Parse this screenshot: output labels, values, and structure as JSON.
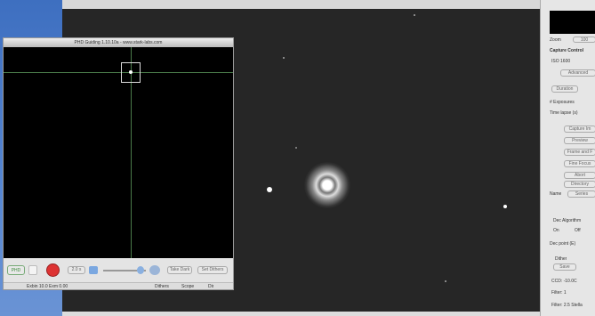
{
  "phd_window": {
    "title": "PHD Guiding 1.10.10a  -  www.stark-labs.com",
    "toolbar": {
      "button_1": "PHD",
      "exposure": "2.0 s",
      "button_2": "Take Dark",
      "button_3": "Set Dithers"
    },
    "status": {
      "info": "Exbin 10.0  Exm 0.00",
      "field_1": "Dithers",
      "field_2": "Scope",
      "field_3": "Dir"
    }
  },
  "side_panel": {
    "zoom_label": "Zoom",
    "zoom_value": "100",
    "section": "Capture Control",
    "iso": "ISO 1600",
    "advanced": "Advanced",
    "duration": "Duration",
    "exposures": "# Exposures",
    "time_lapse": "Time lapse (s)",
    "capture": "Capture Im",
    "preview": "Preview",
    "frame": "Frame and F",
    "fine_focus": "Fine Focus",
    "abort": "Abort",
    "directory": "Directory",
    "name_label": "Name",
    "name_value": "Series",
    "dec_guide": "Dec Algorithm",
    "on": "On",
    "off": "Off",
    "dec_point": "Dec point (E)",
    "dither": "Dither",
    "save": "Save",
    "ccd": "CCD: -10.0C",
    "filter_1": "Filter: 1",
    "filter_2": "Filter: 2.5 Stella"
  }
}
